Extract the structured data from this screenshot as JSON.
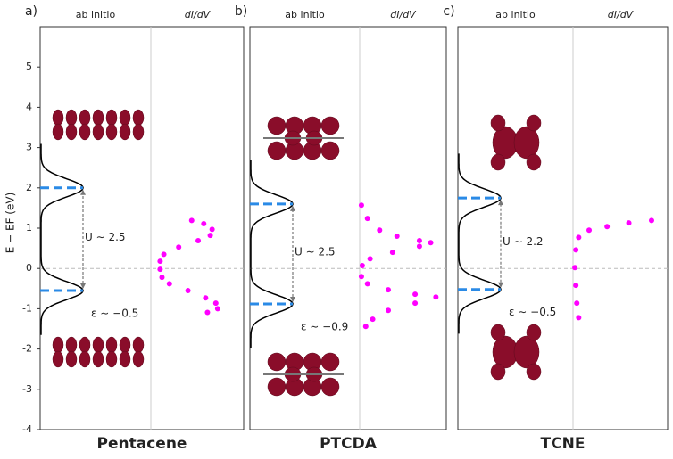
{
  "chart_data": [
    {
      "type": "level-spectrum",
      "label": "a)",
      "title": "Pentacene",
      "column_titles": [
        "ab initio",
        "dI/dV"
      ],
      "ylabel": "E − EF (eV)",
      "ylim": [
        -4,
        6
      ],
      "yticks": [
        -4,
        -3,
        -2,
        -1,
        0,
        1,
        2,
        3,
        4,
        5
      ],
      "zero_line": 0,
      "levels": [
        2.0,
        -0.55
      ],
      "level_color": "#2a8ae6",
      "u_label": "U ∼ 2.5",
      "eps_label": "ε ∼ −0.5",
      "didv": {
        "color": "#ff00ff",
        "x": [
          0.44,
          0.57,
          0.66,
          0.64,
          0.51,
          0.3,
          0.14,
          0.1,
          0.1,
          0.12,
          0.2,
          0.4,
          0.59,
          0.7,
          0.72,
          0.61
        ],
        "y": [
          1.19,
          1.11,
          0.97,
          0.82,
          0.69,
          0.53,
          0.35,
          0.18,
          -0.02,
          -0.22,
          -0.38,
          -0.55,
          -0.73,
          -0.86,
          -1.0,
          -1.09
        ]
      }
    },
    {
      "type": "level-spectrum",
      "label": "b)",
      "title": "PTCDA",
      "column_titles": [
        "ab initio",
        "dI/dV"
      ],
      "ylim": [
        -4,
        6
      ],
      "zero_line": 0,
      "levels": [
        1.6,
        -0.88
      ],
      "level_color": "#2a8ae6",
      "u_label": "U ∼ 2.5",
      "eps_label": "ε ∼ −0.9",
      "didv": {
        "color": "#ff00ff",
        "x": [
          0.02,
          0.09,
          0.23,
          0.43,
          0.69,
          0.82,
          0.69,
          0.38,
          0.12,
          0.03,
          0.02,
          0.09,
          0.33,
          0.64,
          0.88,
          0.64,
          0.33,
          0.15,
          0.07
        ],
        "y": [
          1.57,
          1.24,
          0.95,
          0.8,
          0.69,
          0.64,
          0.55,
          0.4,
          0.24,
          0.07,
          -0.2,
          -0.38,
          -0.53,
          -0.64,
          -0.71,
          -0.86,
          -1.04,
          -1.26,
          -1.44
        ]
      }
    },
    {
      "type": "level-spectrum",
      "label": "c)",
      "title": "TCNE",
      "column_titles": [
        "ab initio",
        "dI/dV"
      ],
      "ylim": [
        -4,
        6
      ],
      "zero_line": 0,
      "levels": [
        1.75,
        -0.52
      ],
      "level_color": "#2a8ae6",
      "u_label": "U ∼ 2.2",
      "eps_label": "ε ∼ −0.5",
      "didv": {
        "color": "#ff00ff",
        "x": [
          0.83,
          0.59,
          0.36,
          0.17,
          0.06,
          0.03,
          0.02,
          0.03,
          0.04,
          0.06
        ],
        "y": [
          1.19,
          1.13,
          1.04,
          0.95,
          0.77,
          0.46,
          0.02,
          -0.42,
          -0.86,
          -1.22
        ]
      }
    }
  ]
}
